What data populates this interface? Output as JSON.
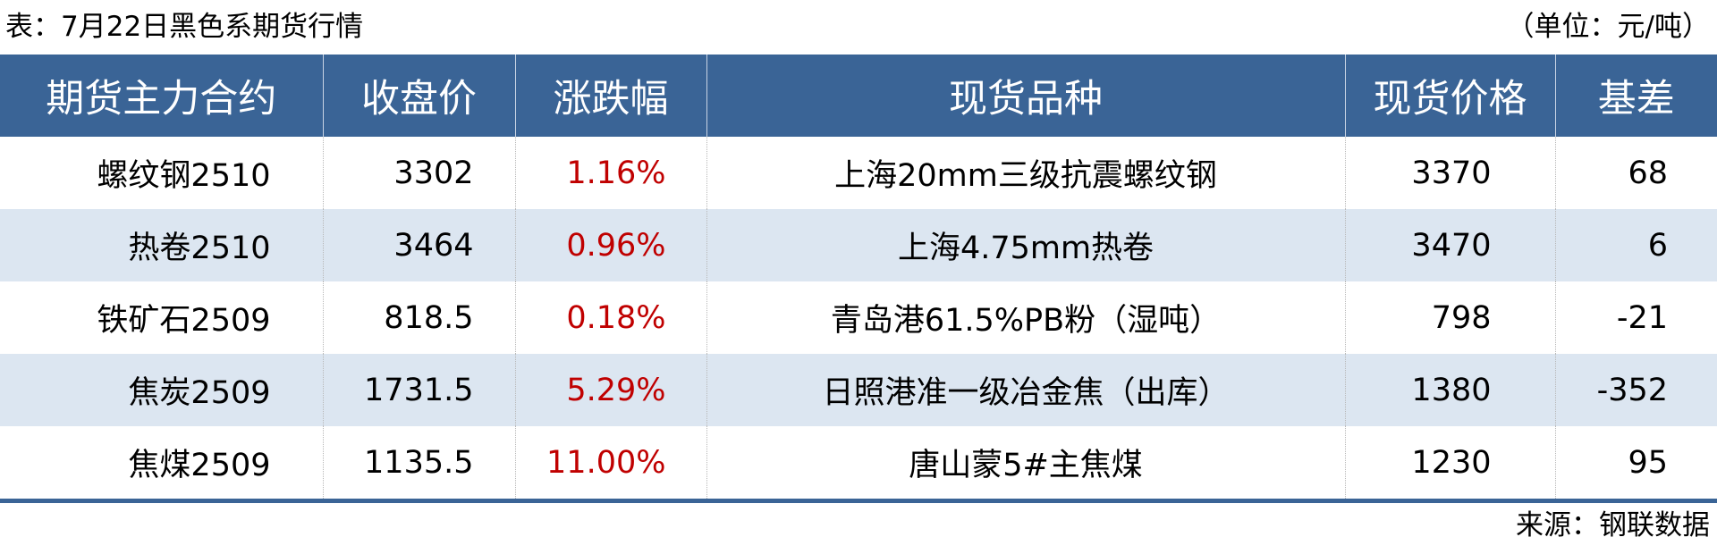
{
  "title": "表：7月22日黑色系期货行情",
  "unit": "（单位：元/吨）",
  "headers": [
    "期货主力合约",
    "收盘价",
    "涨跌幅",
    "现货品种",
    "现货价格",
    "基差"
  ],
  "rows": [
    {
      "contract": "螺纹钢2510",
      "close": "3302",
      "change": "1.16%",
      "spot": "上海20mm三级抗震螺纹钢",
      "spot_price": "3370",
      "basis": "68"
    },
    {
      "contract": "热卷2510",
      "close": "3464",
      "change": "0.96%",
      "spot": "上海4.75mm热卷",
      "spot_price": "3470",
      "basis": "6"
    },
    {
      "contract": "铁矿石2509",
      "close": "818.5",
      "change": "0.18%",
      "spot": "青岛港61.5%PB粉（湿吨）",
      "spot_price": "798",
      "basis": "-21"
    },
    {
      "contract": "焦炭2509",
      "close": "1731.5",
      "change": "5.29%",
      "spot": "日照港准一级冶金焦（出库）",
      "spot_price": "1380",
      "basis": "-352"
    },
    {
      "contract": "焦煤2509",
      "close": "1135.5",
      "change": "11.00%",
      "spot": "唐山蒙5#主焦煤",
      "spot_price": "1230",
      "basis": "95"
    }
  ],
  "source": "来源：钢联数据",
  "colors": {
    "header_bg": "#3a6496",
    "alt_row": "#dce6f1",
    "change_text": "#c00000"
  }
}
